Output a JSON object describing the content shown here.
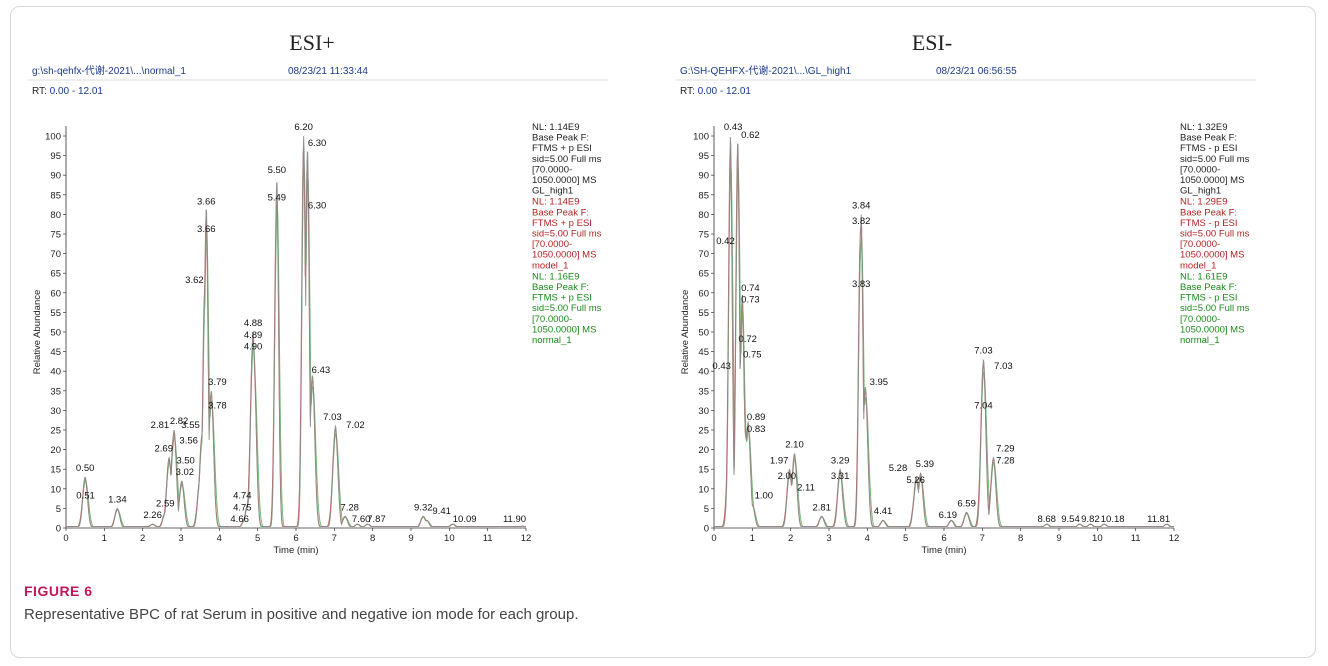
{
  "figure": {
    "label": "FIGURE 6",
    "caption": "Representative BPC of rat Serum in positive and negative ion mode for each group."
  },
  "axis_common": {
    "ylabel": "Relative Abundance",
    "xlabel": "Time (min)",
    "rt_prefix": "RT:",
    "x_ticks": [
      "0",
      "1",
      "2",
      "3",
      "4",
      "5",
      "6",
      "7",
      "8",
      "9",
      "10",
      "11",
      "12"
    ],
    "y_ticks": [
      "0",
      "5",
      "10",
      "15",
      "20",
      "25",
      "30",
      "35",
      "40",
      "45",
      "50",
      "55",
      "60",
      "65",
      "70",
      "75",
      "80",
      "85",
      "90",
      "95",
      "100"
    ]
  },
  "colors": {
    "black": "#222222",
    "red": "#b22222",
    "green": "#1a8a1a",
    "path_blue": "#1a3b8c",
    "trace_grey": "#8a8a8a",
    "trace_green": "#66b266",
    "trace_red": "#c86464"
  },
  "chart_data": [
    {
      "type": "line",
      "title": "ESI+",
      "file_path": "g:\\sh-qehfx-代谢-2021\\...\\normal_1",
      "timestamp": "08/23/21 11:33:44",
      "rt_range": "0.00 - 12.01",
      "xlim": [
        0,
        12
      ],
      "ylim": [
        0,
        100
      ],
      "xlabel": "Time (min)",
      "ylabel": "Relative Abundance",
      "legend": [
        {
          "color": "black",
          "lines": [
            "NL: 1.14E9",
            "Base Peak F:",
            "FTMS + p ESI",
            "sid=5.00  Full ms",
            "[70.0000-",
            "1050.0000]  MS",
            "GL_high1"
          ]
        },
        {
          "color": "red",
          "lines": [
            "NL: 1.14E9",
            "Base Peak F:",
            "FTMS + p ESI",
            "sid=5.00  Full ms",
            "[70.0000-",
            "1050.0000]  MS",
            "model_1"
          ]
        },
        {
          "color": "green",
          "lines": [
            "NL: 1.16E9",
            "Base Peak F:",
            "FTMS + p ESI",
            "sid=5.00  Full ms",
            "[70.0000-",
            "1050.0000]  MS",
            "normal_1"
          ]
        }
      ],
      "peaks": [
        {
          "t": 0.51,
          "y": 6
        },
        {
          "t": 0.5,
          "y": 13
        },
        {
          "t": 1.34,
          "y": 5
        },
        {
          "t": 2.26,
          "y": 1
        },
        {
          "t": 2.59,
          "y": 4
        },
        {
          "t": 2.81,
          "y": 24
        },
        {
          "t": 2.82,
          "y": 25
        },
        {
          "t": 2.69,
          "y": 18
        },
        {
          "t": 3.5,
          "y": 13
        },
        {
          "t": 3.02,
          "y": 12
        },
        {
          "t": 3.55,
          "y": 24
        },
        {
          "t": 3.56,
          "y": 20
        },
        {
          "t": 3.62,
          "y": 62
        },
        {
          "t": 3.66,
          "y": 82
        },
        {
          "t": 3.66,
          "y": 75
        },
        {
          "t": 3.79,
          "y": 35
        },
        {
          "t": 3.78,
          "y": 30
        },
        {
          "t": 4.74,
          "y": 6
        },
        {
          "t": 4.75,
          "y": 3
        },
        {
          "t": 4.66,
          "y": 2
        },
        {
          "t": 4.88,
          "y": 50
        },
        {
          "t": 4.89,
          "y": 47
        },
        {
          "t": 4.9,
          "y": 44
        },
        {
          "t": 5.5,
          "y": 89
        },
        {
          "t": 5.49,
          "y": 82
        },
        {
          "t": 6.2,
          "y": 100
        },
        {
          "t": 6.3,
          "y": 97
        },
        {
          "t": 6.3,
          "y": 81
        },
        {
          "t": 6.43,
          "y": 39
        },
        {
          "t": 7.03,
          "y": 26
        },
        {
          "t": 7.02,
          "y": 24
        },
        {
          "t": 7.28,
          "y": 3
        },
        {
          "t": 7.6,
          "y": 1
        },
        {
          "t": 7.87,
          "y": 1
        },
        {
          "t": 9.32,
          "y": 3
        },
        {
          "t": 9.41,
          "y": 2
        },
        {
          "t": 10.09,
          "y": 1
        },
        {
          "t": 11.9,
          "y": 0.5
        }
      ],
      "labels": [
        {
          "text": "0.51",
          "t": 0.51,
          "y": 7
        },
        {
          "text": "0.50",
          "t": 0.5,
          "y": 14
        },
        {
          "text": "1.34",
          "t": 1.34,
          "y": 6
        },
        {
          "text": "2.26",
          "t": 2.26,
          "y": 2
        },
        {
          "text": "2.59",
          "t": 2.59,
          "y": 5
        },
        {
          "text": "2.81",
          "t": 2.45,
          "y": 25
        },
        {
          "text": "2.82",
          "t": 2.95,
          "y": 26
        },
        {
          "text": "2.69",
          "t": 2.55,
          "y": 19
        },
        {
          "text": "3.56",
          "t": 3.2,
          "y": 21
        },
        {
          "text": "3.50",
          "t": 3.12,
          "y": 16
        },
        {
          "text": "3.02",
          "t": 3.1,
          "y": 13
        },
        {
          "text": "3.55",
          "t": 3.25,
          "y": 25
        },
        {
          "text": "3.62",
          "t": 3.35,
          "y": 62
        },
        {
          "text": "3.66",
          "t": 3.66,
          "y": 82
        },
        {
          "text": "3.66",
          "t": 3.66,
          "y": 75
        },
        {
          "text": "3.79",
          "t": 3.95,
          "y": 36
        },
        {
          "text": "3.78",
          "t": 3.95,
          "y": 30
        },
        {
          "text": "4.74",
          "t": 4.6,
          "y": 7
        },
        {
          "text": "4.75",
          "t": 4.6,
          "y": 4
        },
        {
          "text": "4.66",
          "t": 4.53,
          "y": 1
        },
        {
          "text": "4.88",
          "t": 4.88,
          "y": 51
        },
        {
          "text": "4.89",
          "t": 4.88,
          "y": 48
        },
        {
          "text": "4.90",
          "t": 4.88,
          "y": 45
        },
        {
          "text": "5.50",
          "t": 5.5,
          "y": 90
        },
        {
          "text": "5.49",
          "t": 5.5,
          "y": 83
        },
        {
          "text": "6.20",
          "t": 6.2,
          "y": 101
        },
        {
          "text": "6.30",
          "t": 6.55,
          "y": 97
        },
        {
          "text": "6.30",
          "t": 6.55,
          "y": 81
        },
        {
          "text": "6.43",
          "t": 6.65,
          "y": 39
        },
        {
          "text": "7.03",
          "t": 6.95,
          "y": 27
        },
        {
          "text": "7.02",
          "t": 7.55,
          "y": 25
        },
        {
          "text": "7.28",
          "t": 7.4,
          "y": 4
        },
        {
          "text": "7.60",
          "t": 7.7,
          "y": 1
        },
        {
          "text": "7.87",
          "t": 8.1,
          "y": 1
        },
        {
          "text": "9.32",
          "t": 9.32,
          "y": 4
        },
        {
          "text": "9.41",
          "t": 9.8,
          "y": 3
        },
        {
          "text": "10.09",
          "t": 10.4,
          "y": 1
        },
        {
          "text": "11.90",
          "t": 11.7,
          "y": 1
        }
      ]
    },
    {
      "type": "line",
      "title": "ESI-",
      "file_path": "G:\\SH-QEHFX-代谢-2021\\...\\GL_high1",
      "timestamp": "08/23/21 06:56:55",
      "rt_range": "0.00 - 12.01",
      "xlim": [
        0,
        12
      ],
      "ylim": [
        0,
        100
      ],
      "xlabel": "Time (min)",
      "ylabel": "Relative Abundance",
      "legend": [
        {
          "color": "black",
          "lines": [
            "NL: 1.32E9",
            "Base Peak F:",
            "FTMS - p ESI",
            "sid=5.00  Full ms",
            "[70.0000-",
            "1050.0000]  MS",
            "GL_high1"
          ]
        },
        {
          "color": "red",
          "lines": [
            "NL: 1.29E9",
            "Base Peak F:",
            "FTMS - p ESI",
            "sid=5.00  Full ms",
            "[70.0000-",
            "1050.0000]  MS",
            "model_1"
          ]
        },
        {
          "color": "green",
          "lines": [
            "NL: 1.61E9",
            "Base Peak F:",
            "FTMS - p ESI",
            "sid=5.00  Full ms",
            "[70.0000-",
            "1050.0000]  MS",
            "normal_1"
          ]
        }
      ],
      "peaks": [
        {
          "t": 0.42,
          "y": 72
        },
        {
          "t": 0.43,
          "y": 100
        },
        {
          "t": 0.43,
          "y": 40
        },
        {
          "t": 0.62,
          "y": 99
        },
        {
          "t": 0.74,
          "y": 60
        },
        {
          "t": 0.73,
          "y": 57
        },
        {
          "t": 0.72,
          "y": 47
        },
        {
          "t": 0.75,
          "y": 43
        },
        {
          "t": 0.89,
          "y": 27
        },
        {
          "t": 0.83,
          "y": 24
        },
        {
          "t": 1.0,
          "y": 6
        },
        {
          "t": 1.97,
          "y": 15
        },
        {
          "t": 2.0,
          "y": 12
        },
        {
          "t": 2.1,
          "y": 19
        },
        {
          "t": 2.11,
          "y": 8
        },
        {
          "t": 2.81,
          "y": 3
        },
        {
          "t": 3.29,
          "y": 15
        },
        {
          "t": 3.31,
          "y": 11
        },
        {
          "t": 3.84,
          "y": 80
        },
        {
          "t": 3.82,
          "y": 76
        },
        {
          "t": 3.83,
          "y": 60
        },
        {
          "t": 3.95,
          "y": 36
        },
        {
          "t": 4.41,
          "y": 2
        },
        {
          "t": 5.28,
          "y": 13
        },
        {
          "t": 5.39,
          "y": 14
        },
        {
          "t": 5.26,
          "y": 10
        },
        {
          "t": 6.19,
          "y": 2
        },
        {
          "t": 6.59,
          "y": 4
        },
        {
          "t": 7.03,
          "y": 43
        },
        {
          "t": 7.03,
          "y": 40
        },
        {
          "t": 7.04,
          "y": 30
        },
        {
          "t": 7.29,
          "y": 18
        },
        {
          "t": 7.28,
          "y": 16
        },
        {
          "t": 8.68,
          "y": 1
        },
        {
          "t": 9.54,
          "y": 1
        },
        {
          "t": 9.82,
          "y": 1
        },
        {
          "t": 10.18,
          "y": 1
        },
        {
          "t": 11.81,
          "y": 1
        }
      ],
      "labels": [
        {
          "text": "0.43",
          "t": 0.5,
          "y": 101
        },
        {
          "text": "0.62",
          "t": 0.95,
          "y": 99
        },
        {
          "text": "0.42",
          "t": 0.3,
          "y": 72
        },
        {
          "text": "0.74",
          "t": 0.95,
          "y": 60
        },
        {
          "text": "0.73",
          "t": 0.95,
          "y": 57
        },
        {
          "text": "0.72",
          "t": 0.88,
          "y": 47
        },
        {
          "text": "0.75",
          "t": 1.0,
          "y": 43
        },
        {
          "text": "0.43",
          "t": 0.2,
          "y": 40
        },
        {
          "text": "0.89",
          "t": 1.1,
          "y": 27
        },
        {
          "text": "0.83",
          "t": 1.1,
          "y": 24
        },
        {
          "text": "1.00",
          "t": 1.3,
          "y": 7
        },
        {
          "text": "1.97",
          "t": 1.7,
          "y": 16
        },
        {
          "text": "2.10",
          "t": 2.1,
          "y": 20
        },
        {
          "text": "2.00",
          "t": 1.9,
          "y": 12
        },
        {
          "text": "2.11",
          "t": 2.4,
          "y": 9
        },
        {
          "text": "2.81",
          "t": 2.81,
          "y": 4
        },
        {
          "text": "3.29",
          "t": 3.29,
          "y": 16
        },
        {
          "text": "3.31",
          "t": 3.29,
          "y": 12
        },
        {
          "text": "3.84",
          "t": 3.84,
          "y": 81
        },
        {
          "text": "3.82",
          "t": 3.84,
          "y": 77
        },
        {
          "text": "3.83",
          "t": 3.84,
          "y": 61
        },
        {
          "text": "3.95",
          "t": 4.3,
          "y": 36
        },
        {
          "text": "4.41",
          "t": 4.41,
          "y": 3
        },
        {
          "text": "5.28",
          "t": 4.8,
          "y": 14
        },
        {
          "text": "5.39",
          "t": 5.5,
          "y": 15
        },
        {
          "text": "5.26",
          "t": 5.26,
          "y": 11
        },
        {
          "text": "6.19",
          "t": 6.1,
          "y": 2
        },
        {
          "text": "6.59",
          "t": 6.59,
          "y": 5
        },
        {
          "text": "7.03",
          "t": 7.03,
          "y": 44
        },
        {
          "text": "7.03",
          "t": 7.55,
          "y": 40
        },
        {
          "text": "7.04",
          "t": 7.03,
          "y": 30
        },
        {
          "text": "7.29",
          "t": 7.6,
          "y": 19
        },
        {
          "text": "7.28",
          "t": 7.6,
          "y": 16
        },
        {
          "text": "8.68",
          "t": 8.68,
          "y": 1
        },
        {
          "text": "9.54",
          "t": 9.3,
          "y": 1
        },
        {
          "text": "9.82",
          "t": 9.82,
          "y": 1
        },
        {
          "text": "10.18",
          "t": 10.4,
          "y": 1
        },
        {
          "text": "11.81",
          "t": 11.6,
          "y": 1
        }
      ]
    }
  ]
}
